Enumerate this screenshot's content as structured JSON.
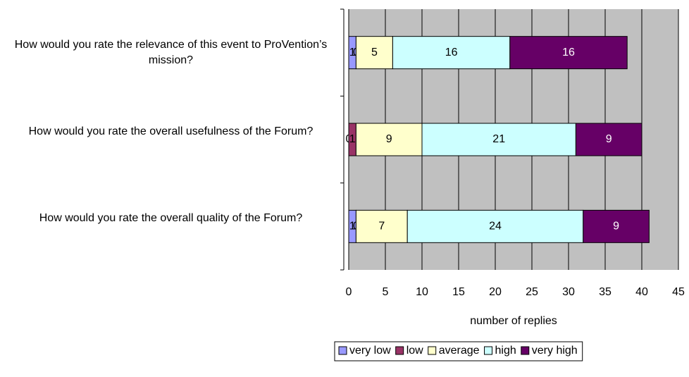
{
  "chart_data": {
    "type": "stacked-bar-horizontal",
    "categories": [
      "How would you rate the relevance of this event to ProVention’s mission?",
      "How would you rate the overall usefulness of the Forum?",
      "How would you rate the overall quality of the Forum?"
    ],
    "series": [
      {
        "name": "very low",
        "color": "#9999ff",
        "values": [
          1,
          0,
          1
        ]
      },
      {
        "name": "low",
        "color": "#993366",
        "values": [
          0,
          1,
          0
        ]
      },
      {
        "name": "average",
        "color": "#ffffcc",
        "values": [
          5,
          9,
          7
        ]
      },
      {
        "name": "high",
        "color": "#ccffff",
        "values": [
          16,
          21,
          24
        ]
      },
      {
        "name": "very high",
        "color": "#660066",
        "values": [
          16,
          9,
          9
        ]
      }
    ],
    "xlabel": "number of replies",
    "xlim": [
      0,
      45
    ],
    "xticks": [
      0,
      5,
      10,
      15,
      20,
      25,
      30,
      35,
      40,
      45
    ],
    "grid": true,
    "legend": "bottom"
  }
}
